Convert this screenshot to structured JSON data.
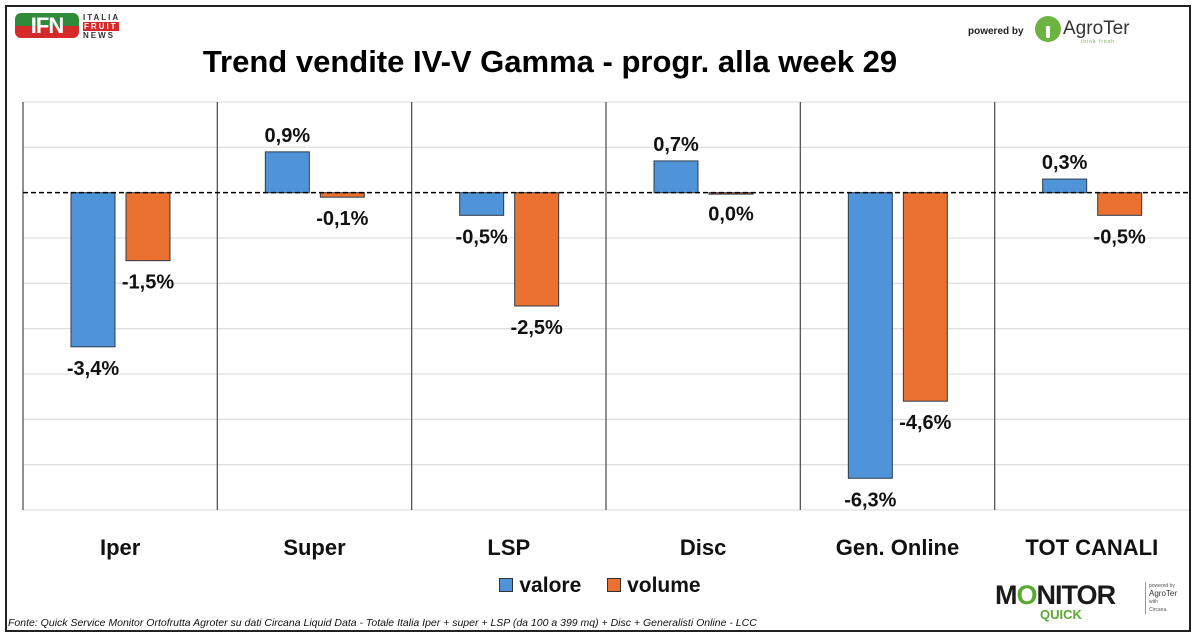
{
  "header": {
    "logo_left": {
      "abbr": "IFN",
      "line1": "ITALIA",
      "line2": "FRUIT",
      "line3": "NEWS"
    },
    "powered_by": "powered by",
    "logo_right": {
      "name": "AgroTer",
      "tagline": "think fresh"
    }
  },
  "footer": {
    "source": "Fonte: Quick Service Monitor Ortofrutta Agroter su dati Circana Liquid Data - Totale Italia Iper + super + LSP (da 100 a 399 mq) + Disc + Generalisti Online - LCC",
    "monitor_logo": {
      "word": "MONITOR",
      "sub": "QUICK",
      "side_line1": "powered by",
      "side_line2": "AgroTer",
      "side_line3": "with",
      "side_line4": "Circana."
    }
  },
  "colors": {
    "valore": "#4f93d8",
    "volume": "#ea7130",
    "zero_line": "#000000",
    "grid": "#e0e0e0",
    "separator": "#555555"
  },
  "chart_data": {
    "type": "bar",
    "title": "Trend vendite IV-V Gamma - progr. alla week 29",
    "xlabel": "",
    "ylabel": "",
    "categories": [
      "Iper",
      "Super",
      "LSP",
      "Disc",
      "Gen. Online",
      "TOT CANALI"
    ],
    "series": [
      {
        "name": "valore",
        "values": [
          -3.4,
          0.9,
          -0.5,
          0.7,
          -6.3,
          0.3
        ],
        "labels": [
          "-3,4%",
          "0,9%",
          "-0,5%",
          "0,7%",
          "-6,3%",
          "0,3%"
        ]
      },
      {
        "name": "volume",
        "values": [
          -1.5,
          -0.1,
          -2.5,
          0.0,
          -4.6,
          -0.5
        ],
        "labels": [
          "-1,5%",
          "-0,1%",
          "-2,5%",
          "0,0%",
          "-4,6%",
          "-0,5%"
        ]
      }
    ],
    "ylim": [
      -7,
      2
    ],
    "grid_step": 1,
    "grid": true,
    "zero_line": "dashed",
    "legend_position": "bottom-center",
    "legend": [
      "valore",
      "volume"
    ]
  }
}
